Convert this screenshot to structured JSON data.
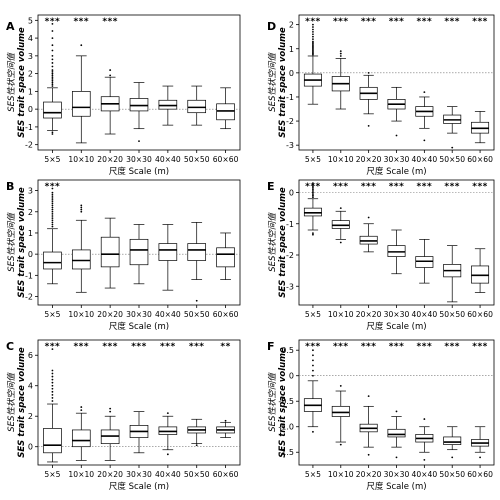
{
  "chart_data": [
    {
      "type": "box",
      "panel": "A",
      "ylabel_cn": "SES性状空间值",
      "ylabel_en": "SES trait space volume",
      "xlabel": "尺度 Scale (m)",
      "ylim": [
        -2.3,
        5.3
      ],
      "yticks": [
        -2,
        -1,
        0,
        1,
        2,
        3,
        4,
        5
      ],
      "categories": [
        "5×5",
        "10×10",
        "20×20",
        "30×30",
        "40×40",
        "50×50",
        "60×60"
      ],
      "significance": [
        "***",
        "***",
        "***",
        "",
        "",
        "",
        ""
      ],
      "boxes": [
        {
          "wl": -1.2,
          "q1": -0.5,
          "med": -0.2,
          "q3": 0.4,
          "wh": 1.2,
          "out": [
            1.3,
            1.4,
            1.5,
            1.6,
            1.7,
            1.8,
            1.9,
            2.0,
            2.1,
            2.2,
            2.4,
            2.6,
            2.8,
            3.0,
            3.3,
            3.6,
            4.0,
            4.4,
            4.8,
            -1.3,
            -1.4
          ]
        },
        {
          "wl": -1.9,
          "q1": -0.4,
          "med": 0.1,
          "q3": 1.0,
          "wh": 3.0,
          "out": [
            3.6
          ]
        },
        {
          "wl": -1.4,
          "q1": -0.1,
          "med": 0.3,
          "q3": 0.7,
          "wh": 1.8,
          "out": [
            2.2,
            1.9
          ]
        },
        {
          "wl": -1.1,
          "q1": -0.1,
          "med": 0.2,
          "q3": 0.6,
          "wh": 1.5,
          "out": [
            -1.8
          ]
        },
        {
          "wl": -0.9,
          "q1": 0.0,
          "med": 0.2,
          "q3": 0.5,
          "wh": 1.3,
          "out": []
        },
        {
          "wl": -0.9,
          "q1": -0.2,
          "med": 0.1,
          "q3": 0.5,
          "wh": 1.3,
          "out": []
        },
        {
          "wl": -1.1,
          "q1": -0.6,
          "med": -0.1,
          "q3": 0.3,
          "wh": 1.2,
          "out": []
        }
      ]
    },
    {
      "type": "box",
      "panel": "D",
      "ylabel_cn": "SES性状空间值",
      "ylabel_en": "SES trait space volume",
      "xlabel": "尺度 Scale (m)",
      "ylim": [
        -3.2,
        2.4
      ],
      "yticks": [
        -3,
        -2,
        -1,
        0,
        1,
        2
      ],
      "categories": [
        "5×5",
        "10×10",
        "20×20",
        "30×30",
        "40×40",
        "50×50",
        "60×60"
      ],
      "significance": [
        "***",
        "***",
        "***",
        "***",
        "***",
        "***",
        "***"
      ],
      "boxes": [
        {
          "wl": -1.3,
          "q1": -0.55,
          "med": -0.3,
          "q3": -0.05,
          "wh": 0.7,
          "out": [
            0.75,
            0.8,
            0.85,
            0.9,
            0.95,
            1.0,
            1.05,
            1.1,
            1.15,
            1.2,
            1.25,
            1.3,
            1.4,
            1.5,
            1.6,
            1.7,
            1.8,
            1.9,
            2.0
          ]
        },
        {
          "wl": -1.5,
          "q1": -0.75,
          "med": -0.45,
          "q3": -0.15,
          "wh": 0.6,
          "out": [
            0.7,
            0.8,
            0.9
          ]
        },
        {
          "wl": -1.7,
          "q1": -1.1,
          "med": -0.85,
          "q3": -0.6,
          "wh": -0.1,
          "out": [
            -2.2,
            0.0
          ]
        },
        {
          "wl": -2.0,
          "q1": -1.5,
          "med": -1.3,
          "q3": -1.1,
          "wh": -0.6,
          "out": [
            -2.6
          ]
        },
        {
          "wl": -2.3,
          "q1": -1.8,
          "med": -1.6,
          "q3": -1.4,
          "wh": -1.0,
          "out": [
            -2.8,
            -0.8
          ]
        },
        {
          "wl": -2.5,
          "q1": -2.1,
          "med": -1.95,
          "q3": -1.75,
          "wh": -1.4,
          "out": [
            -3.1
          ]
        },
        {
          "wl": -2.9,
          "q1": -2.5,
          "med": -2.3,
          "q3": -2.05,
          "wh": -1.6,
          "out": []
        }
      ]
    },
    {
      "type": "box",
      "panel": "B",
      "ylabel_cn": "SES性状空间值",
      "ylabel_en": "SES trait space volume",
      "xlabel": "尺度 Scale (m)",
      "ylim": [
        -2.4,
        3.5
      ],
      "yticks": [
        -2,
        -1,
        0,
        1,
        2,
        3
      ],
      "categories": [
        "5×5",
        "10×10",
        "20×20",
        "30×30",
        "40×40",
        "50×50",
        "60×60"
      ],
      "significance": [
        "***",
        "",
        "",
        "",
        "",
        "",
        ""
      ],
      "boxes": [
        {
          "wl": -1.4,
          "q1": -0.7,
          "med": -0.4,
          "q3": 0.1,
          "wh": 1.2,
          "out": [
            1.3,
            1.4,
            1.5,
            1.6,
            1.7,
            1.8,
            1.9,
            2.0,
            2.1,
            2.2,
            2.3,
            2.4,
            2.5,
            2.6,
            2.7,
            2.8,
            2.9,
            3.1
          ]
        },
        {
          "wl": -1.8,
          "q1": -0.7,
          "med": -0.3,
          "q3": 0.2,
          "wh": 1.6,
          "out": [
            2.0,
            2.1,
            2.2,
            2.3
          ]
        },
        {
          "wl": -1.6,
          "q1": -0.6,
          "med": 0.0,
          "q3": 0.8,
          "wh": 1.7,
          "out": []
        },
        {
          "wl": -1.4,
          "q1": -0.5,
          "med": 0.2,
          "q3": 0.7,
          "wh": 1.4,
          "out": []
        },
        {
          "wl": -1.7,
          "q1": -0.3,
          "med": 0.2,
          "q3": 0.5,
          "wh": 1.4,
          "out": []
        },
        {
          "wl": -1.2,
          "q1": -0.3,
          "med": 0.2,
          "q3": 0.5,
          "wh": 1.5,
          "out": [
            -2.2
          ]
        },
        {
          "wl": -1.2,
          "q1": -0.6,
          "med": 0.0,
          "q3": 0.3,
          "wh": 1.0,
          "out": []
        }
      ]
    },
    {
      "type": "box",
      "panel": "E",
      "ylabel_cn": "SES性状空间值",
      "ylabel_en": "SES trait space volume",
      "xlabel": "尺度 Scale (m)",
      "ylim": [
        -3.6,
        0.4
      ],
      "yticks": [
        -3,
        -2,
        -1,
        0
      ],
      "categories": [
        "5×5",
        "10×10",
        "20×20",
        "30×30",
        "40×40",
        "50×50",
        "60×60"
      ],
      "significance": [
        "***",
        "***",
        "***",
        "***",
        "***",
        "***",
        "***"
      ],
      "boxes": [
        {
          "wl": -1.2,
          "q1": -0.75,
          "med": -0.65,
          "q3": -0.5,
          "wh": -0.2,
          "out": [
            -0.15,
            -0.1,
            -0.05,
            0.0,
            0.05,
            0.1,
            0.15,
            0.2,
            0.25,
            0.3,
            -1.3,
            -1.35
          ]
        },
        {
          "wl": -1.5,
          "q1": -1.15,
          "med": -1.05,
          "q3": -0.9,
          "wh": -0.6,
          "out": [
            -1.6,
            -0.5
          ]
        },
        {
          "wl": -1.9,
          "q1": -1.65,
          "med": -1.55,
          "q3": -1.4,
          "wh": -1.0,
          "out": [
            -0.8
          ]
        },
        {
          "wl": -2.6,
          "q1": -2.05,
          "med": -1.9,
          "q3": -1.7,
          "wh": -1.2,
          "out": []
        },
        {
          "wl": -2.9,
          "q1": -2.4,
          "med": -2.2,
          "q3": -2.05,
          "wh": -1.5,
          "out": []
        },
        {
          "wl": -3.5,
          "q1": -2.7,
          "med": -2.5,
          "q3": -2.3,
          "wh": -1.7,
          "out": []
        },
        {
          "wl": -3.2,
          "q1": -2.9,
          "med": -2.65,
          "q3": -2.35,
          "wh": -1.8,
          "out": []
        }
      ]
    },
    {
      "type": "box",
      "panel": "C",
      "ylabel_cn": "SES性状空间值",
      "ylabel_en": "SES trait space volume",
      "xlabel": "尺度 Scale (m)",
      "ylim": [
        -1.2,
        7.0
      ],
      "yticks": [
        0,
        2,
        4,
        6
      ],
      "categories": [
        "5×5",
        "10×10",
        "20×20",
        "30×30",
        "40×40",
        "50×50",
        "60×60"
      ],
      "significance": [
        "***",
        "***",
        "***",
        "***",
        "***",
        "***",
        "**"
      ],
      "boxes": [
        {
          "wl": -1.0,
          "q1": -0.4,
          "med": 0.1,
          "q3": 1.2,
          "wh": 2.8,
          "out": [
            3.0,
            3.2,
            3.4,
            3.6,
            3.8,
            4.0,
            4.2,
            4.4,
            4.6,
            4.8,
            5.0,
            6.4
          ]
        },
        {
          "wl": -0.9,
          "q1": 0.0,
          "med": 0.4,
          "q3": 1.1,
          "wh": 2.2,
          "out": [
            2.4,
            2.6
          ]
        },
        {
          "wl": -0.9,
          "q1": 0.2,
          "med": 0.7,
          "q3": 1.1,
          "wh": 2.0,
          "out": [
            2.3,
            2.5
          ]
        },
        {
          "wl": -0.4,
          "q1": 0.6,
          "med": 1.0,
          "q3": 1.4,
          "wh": 2.3,
          "out": []
        },
        {
          "wl": -0.2,
          "q1": 0.8,
          "med": 1.0,
          "q3": 1.3,
          "wh": 2.0,
          "out": [
            -0.5,
            2.2
          ]
        },
        {
          "wl": 0.2,
          "q1": 0.9,
          "med": 1.1,
          "q3": 1.3,
          "wh": 1.8,
          "out": [
            0.1
          ]
        },
        {
          "wl": 0.6,
          "q1": 0.9,
          "med": 1.1,
          "q3": 1.3,
          "wh": 1.6,
          "out": [
            1.7
          ]
        }
      ]
    },
    {
      "type": "box",
      "panel": "F",
      "ylabel_cn": "SES性状空间值",
      "ylabel_en": "SES trait space volume",
      "xlabel": "尺度 Scale (m)",
      "ylim": [
        -1.75,
        0.7
      ],
      "yticks": [
        -1.5,
        -1.0,
        -0.5,
        0,
        0.5
      ],
      "ytick_labels": [
        "-1.5",
        "-1.0",
        "-0.5",
        "0",
        "0.5"
      ],
      "categories": [
        "5×5",
        "10×10",
        "20×20",
        "30×30",
        "40×40",
        "50×50",
        "60×60"
      ],
      "significance": [
        "***",
        "***",
        "***",
        "***",
        "***",
        "***",
        "***"
      ],
      "boxes": [
        {
          "wl": -1.0,
          "q1": -0.7,
          "med": -0.58,
          "q3": -0.45,
          "wh": -0.1,
          "out": [
            0.0,
            0.1,
            0.2,
            0.3,
            0.4,
            0.5,
            -1.1
          ]
        },
        {
          "wl": -1.3,
          "q1": -0.8,
          "med": -0.72,
          "q3": -0.6,
          "wh": -0.3,
          "out": [
            -1.35,
            -0.2
          ]
        },
        {
          "wl": -1.4,
          "q1": -1.1,
          "med": -1.03,
          "q3": -0.95,
          "wh": -0.6,
          "out": [
            -0.4,
            -1.55
          ]
        },
        {
          "wl": -1.4,
          "q1": -1.2,
          "med": -1.15,
          "q3": -1.05,
          "wh": -0.8,
          "out": [
            -0.7,
            -1.6
          ]
        },
        {
          "wl": -1.5,
          "q1": -1.3,
          "med": -1.23,
          "q3": -1.15,
          "wh": -1.0,
          "out": [
            -0.85,
            -1.65
          ]
        },
        {
          "wl": -1.45,
          "q1": -1.35,
          "med": -1.3,
          "q3": -1.2,
          "wh": -1.0,
          "out": [
            -1.6
          ]
        },
        {
          "wl": -1.5,
          "q1": -1.38,
          "med": -1.32,
          "q3": -1.25,
          "wh": -1.0,
          "out": [
            -1.6
          ]
        }
      ]
    }
  ]
}
